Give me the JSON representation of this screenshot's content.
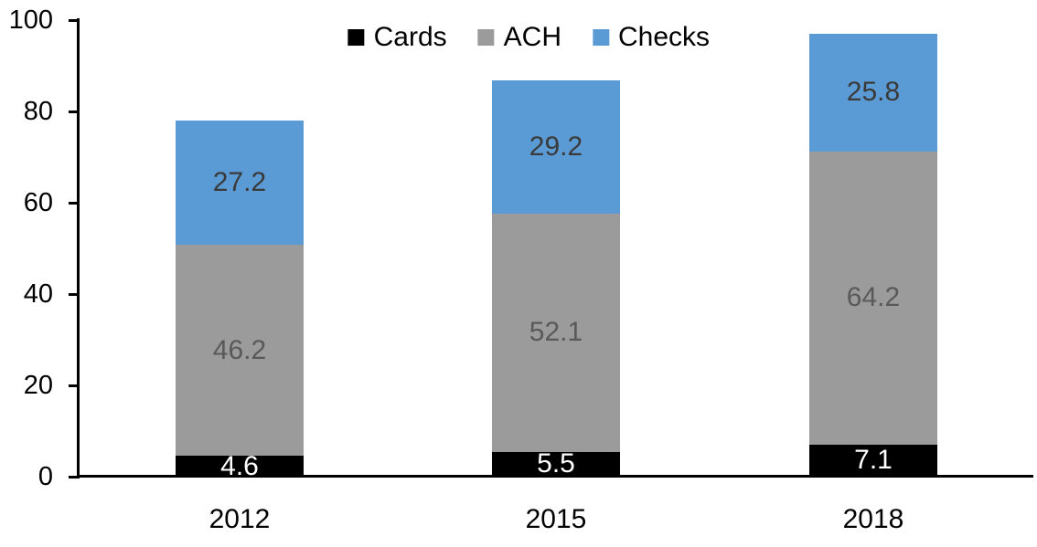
{
  "chart_data": {
    "type": "bar",
    "stacked": true,
    "title": "",
    "xlabel": "",
    "ylabel": "",
    "categories": [
      "2012",
      "2015",
      "2018"
    ],
    "series": [
      {
        "name": "Cards",
        "color": "#000000",
        "label_color": "#ffffff",
        "values": [
          4.6,
          5.5,
          7.1
        ]
      },
      {
        "name": "ACH",
        "color": "#9B9B9B",
        "label_color": "#595959",
        "values": [
          46.2,
          52.1,
          64.2
        ]
      },
      {
        "name": "Checks",
        "color": "#5B9BD5",
        "label_color": "#3A3A3A",
        "values": [
          27.2,
          29.2,
          25.8
        ]
      }
    ],
    "totals": [
      78.0,
      86.8,
      97.1
    ],
    "ylim": [
      0,
      100
    ],
    "yticks": [
      0,
      20,
      40,
      60,
      80,
      100
    ],
    "grid": false,
    "data_labels": true,
    "data_label_decimals": 1,
    "legend_position": "top-center",
    "axis_color": "#000000",
    "background_color": "#ffffff"
  }
}
